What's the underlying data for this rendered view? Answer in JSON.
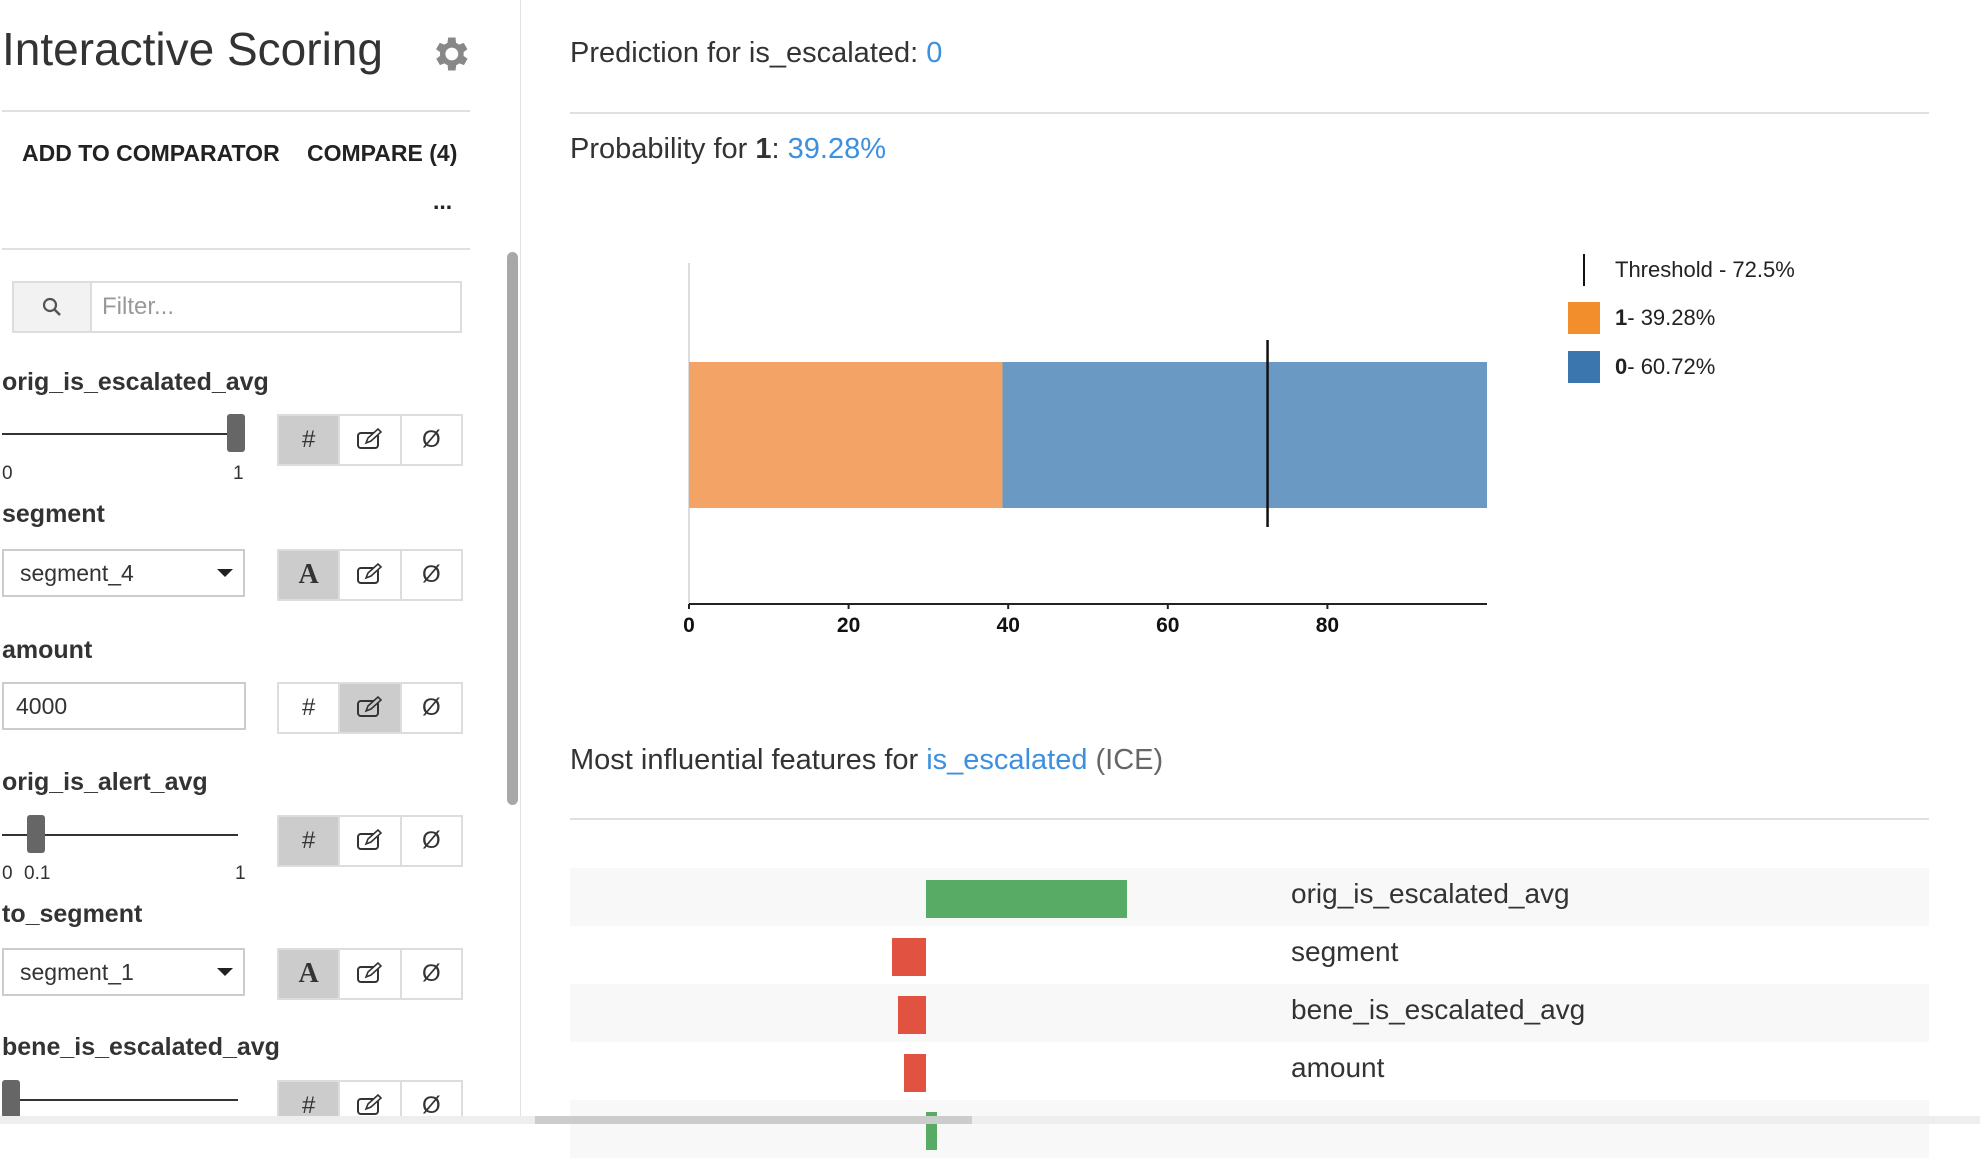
{
  "sidebar": {
    "title": "Interactive Scoring",
    "settings_icon": "gear-icon",
    "add_to_comparator": "ADD TO COMPARATOR",
    "compare": "COMPARE (4)",
    "more": "...",
    "filter": {
      "placeholder": "Filter...",
      "value": "",
      "icon": "search-icon"
    },
    "features": [
      {
        "name": "orig_is_escalated_avg",
        "type": "slider",
        "min": "0",
        "max": "1",
        "value": 1,
        "mode": "numeric"
      },
      {
        "name": "segment",
        "type": "select",
        "value": "segment_4",
        "mode": "categorical"
      },
      {
        "name": "amount",
        "type": "text",
        "value": "4000",
        "mode": "edit"
      },
      {
        "name": "orig_is_alert_avg",
        "type": "slider",
        "min": "0",
        "max": "1",
        "value": 0.1,
        "value_label": "0.1",
        "mode": "numeric"
      },
      {
        "name": "to_segment",
        "type": "select",
        "value": "segment_1",
        "mode": "categorical"
      },
      {
        "name": "bene_is_escalated_avg",
        "type": "slider",
        "value": 0,
        "mode": "numeric"
      }
    ],
    "mode_buttons": {
      "numeric": "#",
      "categorical": "A",
      "edit_icon": "edit-icon",
      "null": "Ø"
    }
  },
  "prediction": {
    "label": "Prediction for is_escalated: ",
    "value": "0"
  },
  "probability": {
    "label_prefix": "Probability for ",
    "class": "1",
    "colon": ": ",
    "value": "39.28%"
  },
  "prob_chart": {
    "x_ticks": [
      "0",
      "20",
      "40",
      "60",
      "80"
    ],
    "xlim": [
      0,
      100
    ],
    "segments": [
      {
        "class": "1",
        "value": 39.28,
        "color": "#f2a365"
      },
      {
        "class": "0",
        "value": 60.72,
        "color": "#6a9ac4"
      }
    ],
    "threshold": 72.5,
    "legend": [
      {
        "bold": "",
        "text": "Threshold - 72.5%",
        "kind": "line"
      },
      {
        "bold": "1",
        "text": " - 39.28%",
        "color": "#f28e2c"
      },
      {
        "bold": "0",
        "text": " - 60.72%",
        "color": "#3b76af"
      }
    ]
  },
  "influence": {
    "prefix": "Most influential features for ",
    "target": "is_escalated",
    "suffix": " (ICE)",
    "positive_color": "#57ab64",
    "negative_color": "#e25241",
    "rows": [
      {
        "name": "orig_is_escalated_avg",
        "value": 0.2
      },
      {
        "name": "segment",
        "value": -0.034
      },
      {
        "name": "bene_is_escalated_avg",
        "value": -0.028
      },
      {
        "name": "amount",
        "value": -0.022
      },
      {
        "name": "",
        "value": 0.011
      }
    ]
  }
}
